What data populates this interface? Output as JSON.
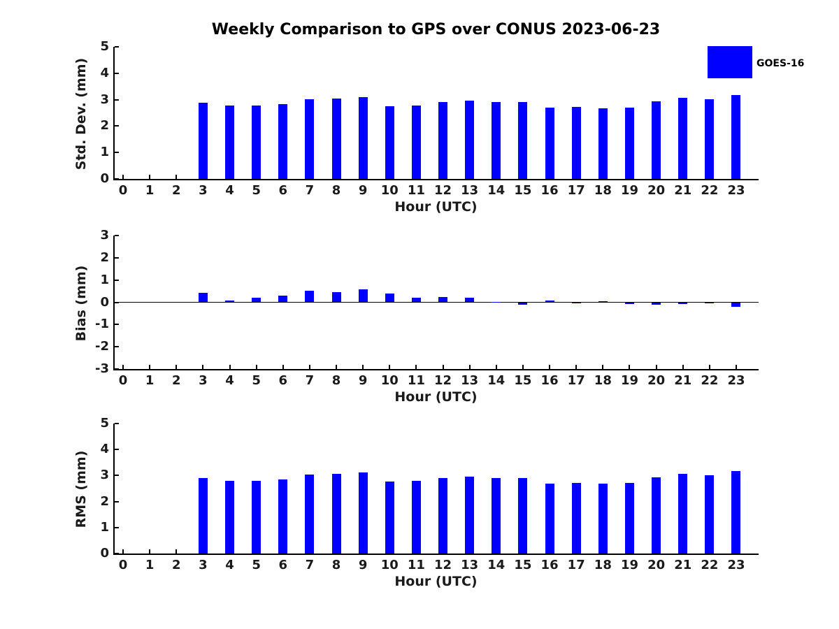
{
  "title": "Weekly Comparison to GPS over CONUS 2023-06-23",
  "legend": {
    "label": "GOES-16",
    "swatch_color": "#0000ff",
    "position": "upper right"
  },
  "colors": {
    "bar": "#0000ff",
    "axis": "#000000",
    "text": "#1a1a1a",
    "background": "#ffffff"
  },
  "chart_data": [
    {
      "type": "bar",
      "name": "std-dev",
      "series_name": "GOES-16",
      "ylabel": "Std. Dev. (mm)",
      "xlabel": "Hour (UTC)",
      "ylim": [
        0,
        5
      ],
      "yticks": [
        0,
        1,
        2,
        3,
        4,
        5
      ],
      "grid": false,
      "x": [
        0,
        1,
        2,
        3,
        4,
        5,
        6,
        7,
        8,
        9,
        10,
        11,
        12,
        13,
        14,
        15,
        16,
        17,
        18,
        19,
        20,
        21,
        22,
        23
      ],
      "values": [
        null,
        null,
        null,
        2.88,
        2.79,
        2.78,
        2.83,
        3.02,
        3.04,
        3.09,
        2.76,
        2.78,
        2.9,
        2.95,
        2.9,
        2.91,
        2.69,
        2.72,
        2.68,
        2.71,
        2.93,
        3.07,
        3.01,
        3.17
      ]
    },
    {
      "type": "bar",
      "name": "bias",
      "series_name": "GOES-16",
      "ylabel": "Bias (mm)",
      "xlabel": "Hour (UTC)",
      "ylim": [
        -3,
        3
      ],
      "yticks": [
        -3,
        -2,
        -1,
        0,
        1,
        2,
        3
      ],
      "zero_line": true,
      "grid": false,
      "x": [
        0,
        1,
        2,
        3,
        4,
        5,
        6,
        7,
        8,
        9,
        10,
        11,
        12,
        13,
        14,
        15,
        16,
        17,
        18,
        19,
        20,
        21,
        22,
        23
      ],
      "values": [
        null,
        null,
        null,
        0.42,
        0.08,
        0.2,
        0.31,
        0.52,
        0.45,
        0.57,
        0.4,
        0.2,
        0.23,
        0.2,
        0.02,
        -0.1,
        0.09,
        -0.06,
        0.05,
        -0.08,
        -0.12,
        -0.08,
        -0.04,
        -0.21
      ]
    },
    {
      "type": "bar",
      "name": "rms",
      "series_name": "GOES-16",
      "ylabel": "RMS (mm)",
      "xlabel": "Hour (UTC)",
      "ylim": [
        0,
        5
      ],
      "yticks": [
        0,
        1,
        2,
        3,
        4,
        5
      ],
      "grid": false,
      "x": [
        0,
        1,
        2,
        3,
        4,
        5,
        6,
        7,
        8,
        9,
        10,
        11,
        12,
        13,
        14,
        15,
        16,
        17,
        18,
        19,
        20,
        21,
        22,
        23
      ],
      "values": [
        null,
        null,
        null,
        2.9,
        2.79,
        2.79,
        2.84,
        3.05,
        3.06,
        3.12,
        2.77,
        2.79,
        2.91,
        2.96,
        2.9,
        2.91,
        2.69,
        2.72,
        2.68,
        2.72,
        2.93,
        3.07,
        3.02,
        3.18
      ]
    }
  ]
}
